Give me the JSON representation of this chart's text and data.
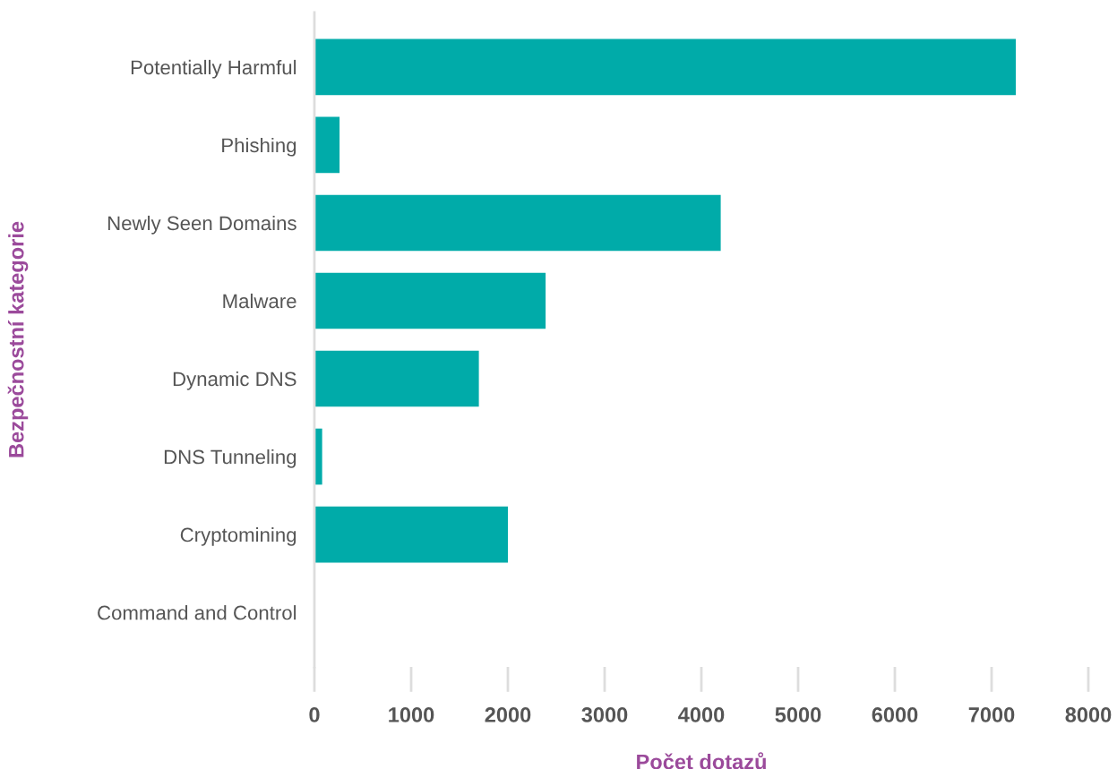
{
  "chart_data": {
    "type": "bar",
    "orientation": "horizontal",
    "xlabel": "Počet dotazů",
    "ylabel": "Bezpečnostní kategorie",
    "categories": [
      "Potentially Harmful",
      "Phishing",
      "Newly Seen Domains",
      "Malware",
      "Dynamic DNS",
      "DNS Tunneling",
      "Cryptomining",
      "Command and Control"
    ],
    "values": [
      7250,
      260,
      4200,
      2390,
      1700,
      80,
      2000,
      0
    ],
    "color": "#00aba9",
    "xlim": [
      0,
      8000
    ],
    "xticks": [
      0,
      1000,
      2000,
      3000,
      4000,
      5000,
      6000,
      7000,
      8000
    ],
    "grid": false,
    "legend": false
  }
}
